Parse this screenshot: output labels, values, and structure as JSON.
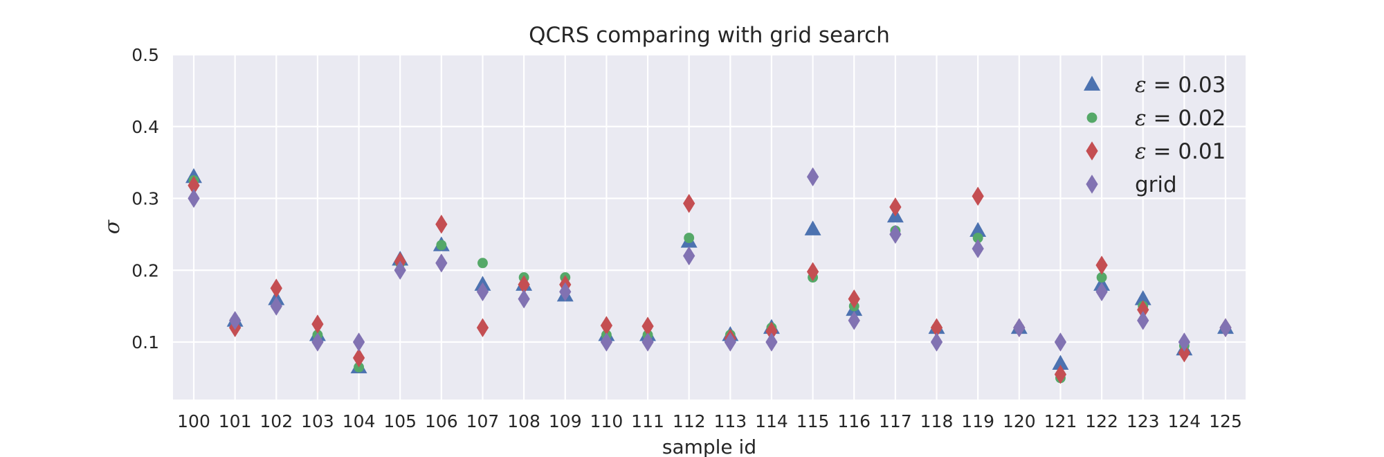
{
  "chart_data": {
    "type": "scatter",
    "title": "QCRS comparing with grid search",
    "xlabel": "sample id",
    "ylabel": "σ",
    "categories": [
      "100",
      "101",
      "102",
      "103",
      "104",
      "105",
      "106",
      "107",
      "108",
      "109",
      "110",
      "111",
      "112",
      "113",
      "114",
      "115",
      "116",
      "117",
      "118",
      "119",
      "120",
      "121",
      "122",
      "123",
      "124",
      "125"
    ],
    "ylim": [
      0.02,
      0.5
    ],
    "yticks": [
      "0.1",
      "0.2",
      "0.3",
      "0.4",
      "0.5"
    ],
    "grid": true,
    "legend_position": "top-right",
    "series": [
      {
        "name": "ε = 0.03",
        "legend_prefix": "ε",
        "legend_suffix": " = 0.03",
        "marker": "triangle",
        "color": "#4C72B0",
        "values": [
          0.33,
          0.13,
          0.16,
          0.11,
          0.065,
          0.215,
          0.235,
          0.18,
          0.18,
          0.165,
          0.11,
          0.11,
          0.24,
          0.11,
          0.12,
          0.257,
          0.145,
          0.275,
          0.12,
          0.255,
          0.12,
          0.07,
          0.18,
          0.16,
          0.09,
          0.12
        ]
      },
      {
        "name": "ε = 0.02",
        "legend_prefix": "ε",
        "legend_suffix": " = 0.02",
        "marker": "circle",
        "color": "#55A868",
        "values": [
          0.325,
          0.13,
          0.15,
          0.11,
          0.065,
          0.21,
          0.235,
          0.21,
          0.19,
          0.19,
          0.11,
          0.11,
          0.245,
          0.11,
          0.12,
          0.19,
          0.15,
          0.255,
          0.12,
          0.245,
          0.12,
          0.05,
          0.19,
          0.15,
          0.095,
          0.12
        ]
      },
      {
        "name": "ε = 0.01",
        "legend_prefix": "ε",
        "legend_suffix": " = 0.01",
        "marker": "diamond",
        "color": "#C44E52",
        "values": [
          0.318,
          0.12,
          0.175,
          0.125,
          0.078,
          0.212,
          0.264,
          0.12,
          0.18,
          0.18,
          0.123,
          0.122,
          0.293,
          0.105,
          0.115,
          0.198,
          0.16,
          0.288,
          0.12,
          0.303,
          0.12,
          0.055,
          0.207,
          0.145,
          0.085,
          0.12
        ]
      },
      {
        "name": "grid",
        "legend_prefix": "",
        "legend_suffix": "grid",
        "marker": "diamond",
        "color": "#8172B2",
        "values": [
          0.3,
          0.13,
          0.15,
          0.1,
          0.1,
          0.2,
          0.21,
          0.17,
          0.16,
          0.17,
          0.1,
          0.1,
          0.22,
          0.1,
          0.1,
          0.33,
          0.13,
          0.25,
          0.1,
          0.23,
          0.12,
          0.1,
          0.17,
          0.13,
          0.1,
          0.12
        ]
      }
    ]
  }
}
